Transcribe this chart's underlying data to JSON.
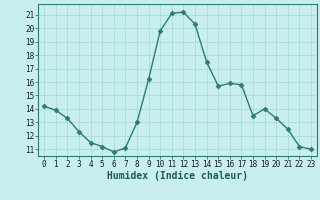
{
  "x": [
    0,
    1,
    2,
    3,
    4,
    5,
    6,
    7,
    8,
    9,
    10,
    11,
    12,
    13,
    14,
    15,
    16,
    17,
    18,
    19,
    20,
    21,
    22,
    23
  ],
  "y": [
    14.2,
    13.9,
    13.3,
    12.3,
    11.5,
    11.2,
    10.8,
    11.1,
    13.0,
    16.2,
    19.8,
    21.1,
    21.2,
    20.3,
    17.5,
    15.7,
    15.9,
    15.8,
    13.5,
    14.0,
    13.3,
    12.5,
    11.2,
    11.0
  ],
  "line_color": "#2e7d6e",
  "marker": "D",
  "marker_size": 2.5,
  "bg_color": "#c8eef0",
  "grid_color": "#aadddd",
  "xlabel": "Humidex (Indice chaleur)",
  "ylabel_ticks": [
    11,
    12,
    13,
    14,
    15,
    16,
    17,
    18,
    19,
    20,
    21
  ],
  "ylim": [
    10.5,
    21.8
  ],
  "xlim": [
    -0.5,
    23.5
  ],
  "tick_fontsize": 5.5,
  "xlabel_fontsize": 7.0
}
